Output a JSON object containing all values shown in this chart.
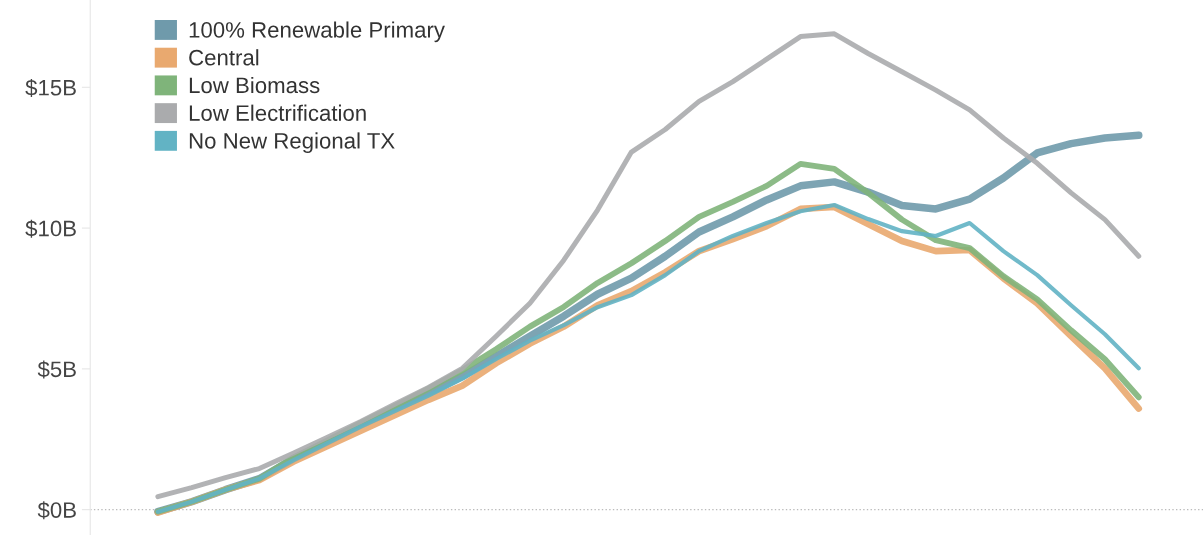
{
  "chart_data": {
    "type": "line",
    "categories": [
      null,
      null,
      null,
      null,
      null,
      null,
      null,
      null,
      null,
      null,
      null,
      null,
      null,
      null,
      null,
      null,
      null,
      null,
      null,
      null,
      null,
      null,
      null,
      null,
      null,
      null,
      null,
      null,
      null,
      null
    ],
    "series": [
      {
        "name": "100% Renewable Primary",
        "color": "#6f9aab",
        "values": [
          -0.07,
          0.28,
          0.71,
          1.1,
          1.8,
          2.4,
          3.0,
          3.56,
          4.13,
          4.73,
          5.44,
          6.16,
          6.87,
          7.65,
          8.22,
          9.0,
          9.86,
          10.4,
          11.0,
          11.5,
          11.64,
          11.28,
          10.8,
          10.68,
          11.03,
          11.78,
          12.67,
          13.0,
          13.2,
          13.3
        ]
      },
      {
        "name": "Central",
        "color": "#e9a96f",
        "values": [
          -0.1,
          0.28,
          0.71,
          1.05,
          1.7,
          2.25,
          2.8,
          3.35,
          3.9,
          4.4,
          5.2,
          5.9,
          6.5,
          7.26,
          7.76,
          8.43,
          9.18,
          9.61,
          10.07,
          10.68,
          10.75,
          10.14,
          9.54,
          9.18,
          9.22,
          8.22,
          7.33,
          6.16,
          5.02,
          3.59
        ]
      },
      {
        "name": "Low Biomass",
        "color": "#7fb47a",
        "values": [
          -0.07,
          0.28,
          0.71,
          1.1,
          1.85,
          2.45,
          3.08,
          3.68,
          4.3,
          4.95,
          5.7,
          6.5,
          7.2,
          8.05,
          8.75,
          9.54,
          10.4,
          10.93,
          11.5,
          12.28,
          12.1,
          11.25,
          10.3,
          9.57,
          9.29,
          8.29,
          7.47,
          6.37,
          5.34,
          3.99
        ]
      },
      {
        "name": "Low Electrification",
        "color": "#aaabad",
        "values": [
          0.46,
          0.78,
          1.14,
          1.46,
          2.0,
          2.56,
          3.13,
          3.74,
          4.34,
          5.02,
          6.16,
          7.33,
          8.86,
          10.64,
          12.7,
          13.5,
          14.5,
          15.2,
          16.0,
          16.8,
          16.9,
          16.2,
          15.55,
          14.9,
          14.2,
          13.2,
          12.3,
          11.25,
          10.3,
          9.0
        ]
      },
      {
        "name": "No New Regional TX",
        "color": "#62b3c4",
        "values": [
          -0.07,
          0.28,
          0.71,
          1.1,
          1.75,
          2.35,
          2.95,
          3.5,
          4.05,
          4.65,
          5.35,
          6.0,
          6.55,
          7.19,
          7.62,
          8.33,
          9.18,
          9.72,
          10.18,
          10.6,
          10.82,
          10.32,
          9.89,
          9.72,
          10.18,
          9.18,
          8.33,
          7.26,
          6.23,
          5.02
        ]
      }
    ],
    "ylim": [
      -0.9,
      18.1
    ],
    "yticks": [
      {
        "value": 0,
        "label": "$0B"
      },
      {
        "value": 5,
        "label": "$5B"
      },
      {
        "value": 10,
        "label": "$10B"
      },
      {
        "value": 15,
        "label": "$15B"
      }
    ],
    "ref_lines": [
      {
        "axis": "y",
        "value": 0,
        "color": "#bbbbbb",
        "line_style": "dotted"
      }
    ],
    "grid": false,
    "legend": "top left",
    "tick_labels": "y"
  }
}
